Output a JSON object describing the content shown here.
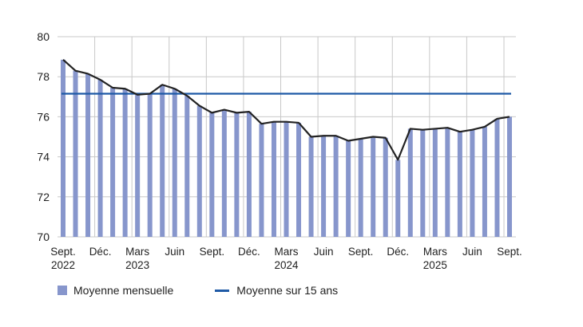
{
  "chart_data": {
    "type": "bar",
    "title": "",
    "xlabel": "",
    "ylabel": "",
    "ylim": [
      70,
      80
    ],
    "yticks": [
      70,
      72,
      74,
      76,
      78,
      80
    ],
    "grid": true,
    "legend_position": "bottom-left",
    "colors": {
      "bars": "#8796cc",
      "line": "#222222",
      "average": "#1f5aa6"
    },
    "categories": [
      "2022-09",
      "2022-10",
      "2022-11",
      "2022-12",
      "2023-01",
      "2023-02",
      "2023-03",
      "2023-04",
      "2023-05",
      "2023-06",
      "2023-07",
      "2023-08",
      "2023-09",
      "2023-10",
      "2023-11",
      "2023-12",
      "2024-01",
      "2024-02",
      "2024-03",
      "2024-04",
      "2024-05",
      "2024-06",
      "2024-07",
      "2024-08",
      "2024-09",
      "2024-10",
      "2024-11",
      "2024-12",
      "2025-01",
      "2025-02",
      "2025-03",
      "2025-04",
      "2025-05",
      "2025-06",
      "2025-07",
      "2025-08",
      "2025-09"
    ],
    "x_tick_labels": [
      {
        "index": 0,
        "line1": "Sept.",
        "line2": "2022"
      },
      {
        "index": 3,
        "line1": "Déc.",
        "line2": ""
      },
      {
        "index": 6,
        "line1": "Mars",
        "line2": "2023"
      },
      {
        "index": 9,
        "line1": "Juin",
        "line2": ""
      },
      {
        "index": 12,
        "line1": "Sept.",
        "line2": ""
      },
      {
        "index": 15,
        "line1": "Déc.",
        "line2": ""
      },
      {
        "index": 18,
        "line1": "Mars",
        "line2": "2024"
      },
      {
        "index": 21,
        "line1": "Juin",
        "line2": ""
      },
      {
        "index": 24,
        "line1": "Sept.",
        "line2": ""
      },
      {
        "index": 27,
        "line1": "Déc.",
        "line2": ""
      },
      {
        "index": 30,
        "line1": "Mars",
        "line2": "2025"
      },
      {
        "index": 33,
        "line1": "Juin",
        "line2": ""
      },
      {
        "index": 36,
        "line1": "Sept.",
        "line2": ""
      }
    ],
    "series": [
      {
        "name": "Moyenne mensuelle",
        "type": "bar+line",
        "values": [
          78.85,
          78.3,
          78.15,
          77.85,
          77.45,
          77.4,
          77.1,
          77.15,
          77.6,
          77.4,
          77.05,
          76.55,
          76.2,
          76.35,
          76.2,
          76.25,
          75.65,
          75.75,
          75.75,
          75.7,
          75.0,
          75.05,
          75.05,
          74.8,
          74.9,
          75.0,
          74.95,
          73.85,
          75.4,
          75.35,
          75.4,
          75.45,
          75.25,
          75.35,
          75.5,
          75.9,
          76.0
        ]
      },
      {
        "name": "Moyenne sur 15 ans",
        "type": "hline",
        "value": 77.15
      }
    ]
  },
  "legend": {
    "bar_label": "Moyenne mensuelle",
    "line_label": "Moyenne sur 15 ans"
  }
}
